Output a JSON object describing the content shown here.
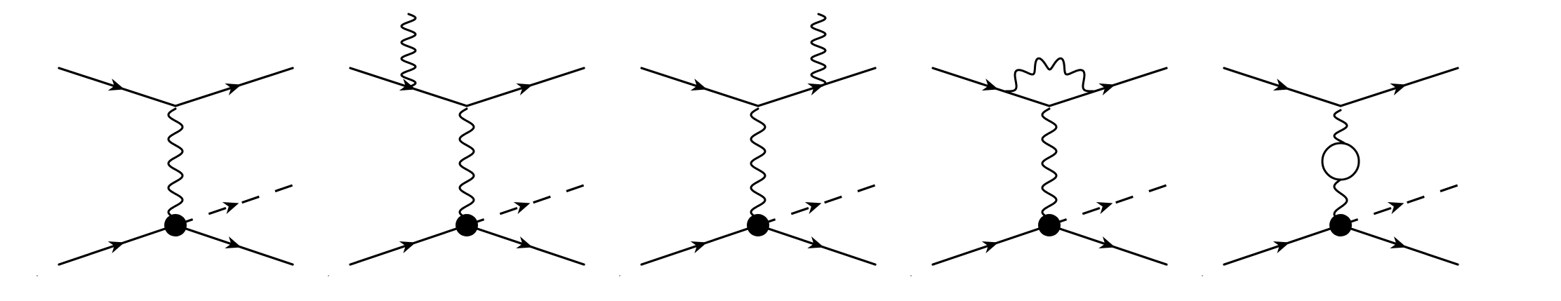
{
  "figure": {
    "panels": [
      {
        "id": "d1",
        "photon": "none",
        "loop": false
      },
      {
        "id": "d2",
        "photon": "initial-leg",
        "loop": false
      },
      {
        "id": "d3",
        "photon": "final-leg",
        "loop": false
      },
      {
        "id": "d4",
        "photon": "vertex-correction",
        "loop": false
      },
      {
        "id": "d5",
        "photon": "none",
        "loop": true
      }
    ],
    "colors": {
      "ink": "#000000",
      "background": "#ffffff"
    }
  }
}
